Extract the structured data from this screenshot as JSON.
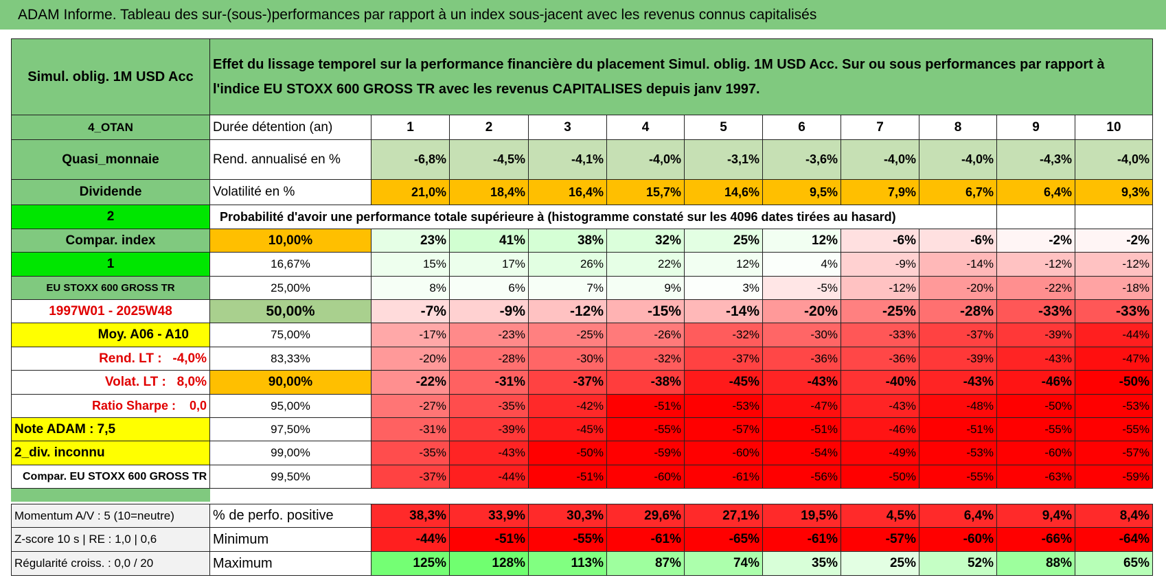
{
  "header": {
    "title": "ADAM Informe. Tableau des sur-(sous-)performances par rapport à un index sous-jacent avec les revenus connus capitalisés"
  },
  "table": {
    "corner": "Simul. oblig. 1M USD Acc",
    "description": "Effet du lissage temporel sur la performance financière du placement Simul. oblig. 1M USD Acc. Sur ou sous performances par rapport à l'indice EU STOXX 600 GROSS TR avec les revenus CAPITALISES depuis janv 1997.",
    "duration_side": "4_OTAN",
    "duration_label": "Durée détention (an)",
    "durations": [
      "1",
      "2",
      "3",
      "4",
      "5",
      "6",
      "7",
      "8",
      "9",
      "10"
    ],
    "stats": [
      {
        "side": "Quasi_monnaie",
        "label": "Rend. annualisé en %",
        "values": [
          "-6,8%",
          "-4,5%",
          "-4,1%",
          "-4,0%",
          "-3,1%",
          "-3,6%",
          "-4,0%",
          "-4,0%",
          "-4,3%",
          "-4,0%"
        ]
      },
      {
        "side": "Dividende",
        "label": "Volatilité en %",
        "values": [
          "21,0%",
          "18,4%",
          "16,4%",
          "15,7%",
          "14,6%",
          "9,5%",
          "7,9%",
          "6,7%",
          "6,4%",
          "9,3%"
        ]
      }
    ],
    "probability_side": "2",
    "probability_title": "Probabilité d'avoir une performance totale supérieure à (histogramme constaté sur les 4096 dates tirées au hasard)",
    "probability_rows": [
      {
        "side": "Compar. index",
        "threshold": "10,00%",
        "values": [
          "23%",
          "41%",
          "38%",
          "32%",
          "25%",
          "12%",
          "-6%",
          "-6%",
          "-2%",
          "-2%"
        ]
      },
      {
        "side": "1",
        "threshold": "16,67%",
        "values": [
          "15%",
          "17%",
          "26%",
          "22%",
          "12%",
          "4%",
          "-9%",
          "-14%",
          "-12%",
          "-12%"
        ]
      },
      {
        "side": "EU STOXX 600 GROSS TR",
        "threshold": "25,00%",
        "values": [
          "8%",
          "6%",
          "7%",
          "9%",
          "3%",
          "-5%",
          "-12%",
          "-20%",
          "-22%",
          "-18%"
        ]
      },
      {
        "side": "1997W01 - 2025W48",
        "threshold": "50,00%",
        "values": [
          "-7%",
          "-9%",
          "-12%",
          "-15%",
          "-14%",
          "-20%",
          "-25%",
          "-28%",
          "-33%",
          "-33%"
        ]
      },
      {
        "side": "Moy. A06 - A10",
        "threshold": "75,00%",
        "values": [
          "-17%",
          "-23%",
          "-25%",
          "-26%",
          "-32%",
          "-30%",
          "-33%",
          "-37%",
          "-39%",
          "-44%"
        ]
      },
      {
        "side": "Rend. LT :   -4,0%",
        "threshold": "83,33%",
        "values": [
          "-20%",
          "-28%",
          "-30%",
          "-32%",
          "-37%",
          "-36%",
          "-36%",
          "-39%",
          "-43%",
          "-47%"
        ]
      },
      {
        "side": "Volat. LT :   8,0%",
        "threshold": "90,00%",
        "values": [
          "-22%",
          "-31%",
          "-37%",
          "-38%",
          "-45%",
          "-43%",
          "-40%",
          "-43%",
          "-46%",
          "-50%"
        ]
      },
      {
        "side": "Ratio Sharpe :    0,0",
        "threshold": "95,00%",
        "values": [
          "-27%",
          "-35%",
          "-42%",
          "-51%",
          "-53%",
          "-47%",
          "-43%",
          "-48%",
          "-50%",
          "-53%"
        ]
      },
      {
        "side": "Note ADAM : 7,5",
        "threshold": "97,50%",
        "values": [
          "-31%",
          "-39%",
          "-45%",
          "-55%",
          "-57%",
          "-51%",
          "-46%",
          "-51%",
          "-55%",
          "-55%"
        ]
      },
      {
        "side": "2_div. inconnu",
        "threshold": "99,00%",
        "values": [
          "-35%",
          "-43%",
          "-50%",
          "-59%",
          "-60%",
          "-54%",
          "-49%",
          "-53%",
          "-60%",
          "-57%"
        ]
      },
      {
        "side": "Compar. EU STOXX 600 GROSS TR",
        "threshold": "99,50%",
        "values": [
          "-37%",
          "-44%",
          "-51%",
          "-60%",
          "-61%",
          "-56%",
          "-50%",
          "-55%",
          "-63%",
          "-59%"
        ]
      }
    ],
    "bottom_rows": [
      {
        "side": "Momentum A/V : 5 (10=neutre)",
        "label": "% de perfo. positive",
        "values": [
          "38,3%",
          "33,9%",
          "30,3%",
          "29,6%",
          "27,1%",
          "19,5%",
          "4,5%",
          "6,4%",
          "9,4%",
          "8,4%"
        ]
      },
      {
        "side": "Z-score 10 s | RE : 1,0 | 0,6",
        "label": "Minimum",
        "values": [
          "-44%",
          "-51%",
          "-55%",
          "-61%",
          "-65%",
          "-61%",
          "-57%",
          "-60%",
          "-66%",
          "-64%"
        ]
      },
      {
        "side": "Régularité croiss. : 0,0 / 20",
        "label": "Maximum",
        "values": [
          "125%",
          "128%",
          "113%",
          "87%",
          "74%",
          "35%",
          "25%",
          "52%",
          "88%",
          "65%"
        ]
      }
    ]
  }
}
